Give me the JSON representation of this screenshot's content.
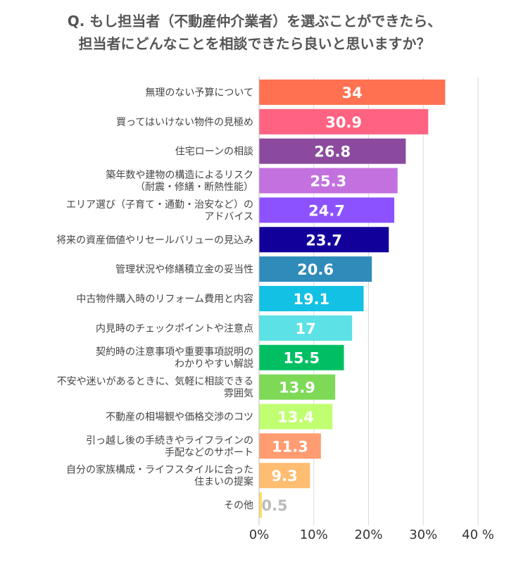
{
  "title_lines": [
    "Q. もし担当者（不動産仲介業者）を選ぶことができたら、",
    "担当者にどんなことを相談できたら良いと思いますか？"
  ],
  "chart_data": {
    "type": "bar",
    "orientation": "horizontal",
    "title": "Q. もし担当者（不動産仲介業者）を選ぶことができたら、担当者にどんなことを相談できたら良いと思いますか？",
    "categories": [
      [
        "無理のない予算について"
      ],
      [
        "買ってはいけない物件の見極め"
      ],
      [
        "住宅ローンの相談"
      ],
      [
        "築年数や建物の構造によるリスク",
        "（耐震・修繕・断熱性能）"
      ],
      [
        "エリア選び（子育て・通勤・治安など）の",
        "アドバイス"
      ],
      [
        "将来の資産価値やリセールバリューの見込み"
      ],
      [
        "管理状況や修繕積立金の妥当性"
      ],
      [
        "中古物件購入時のリフォーム費用と内容"
      ],
      [
        "内見時のチェックポイントや注意点"
      ],
      [
        "契約時の注意事項や重要事項説明の",
        "わかりやすい解説"
      ],
      [
        "不安や迷いがあるときに、気軽に相談できる",
        "雰囲気"
      ],
      [
        "不動産の相場観や価格交渉のコツ"
      ],
      [
        "引っ越し後の手続きやライフラインの",
        "手配などのサポート"
      ],
      [
        "自分の家族構成・ライフスタイルに合った",
        "住まいの提案"
      ],
      [
        "その他"
      ]
    ],
    "values": [
      34,
      30.9,
      26.8,
      25.3,
      24.7,
      23.7,
      20.6,
      19.1,
      17,
      15.5,
      13.9,
      13.4,
      11.3,
      9.3,
      0.5
    ],
    "value_labels": [
      "34",
      "30.9",
      "26.8",
      "25.3",
      "24.7",
      "23.7",
      "20.6",
      "19.1",
      "17",
      "15.5",
      "13.9",
      "13.4",
      "11.3",
      "9.3",
      "0.5"
    ],
    "colors": [
      "#ff7150",
      "#ff6381",
      "#8b4a9e",
      "#c471e0",
      "#8c52ff",
      "#12009b",
      "#2e8bba",
      "#12c1e3",
      "#5ce1e6",
      "#00bf63",
      "#7ed957",
      "#c1ff72",
      "#ff9c71",
      "#ffbd71",
      "#ffde59"
    ],
    "xlim": [
      0,
      40
    ],
    "xticks": [
      "0%",
      "10%",
      "20%",
      "30%",
      "40 %"
    ],
    "xlabel": "",
    "ylabel": "",
    "grid": true,
    "legend": "none"
  }
}
